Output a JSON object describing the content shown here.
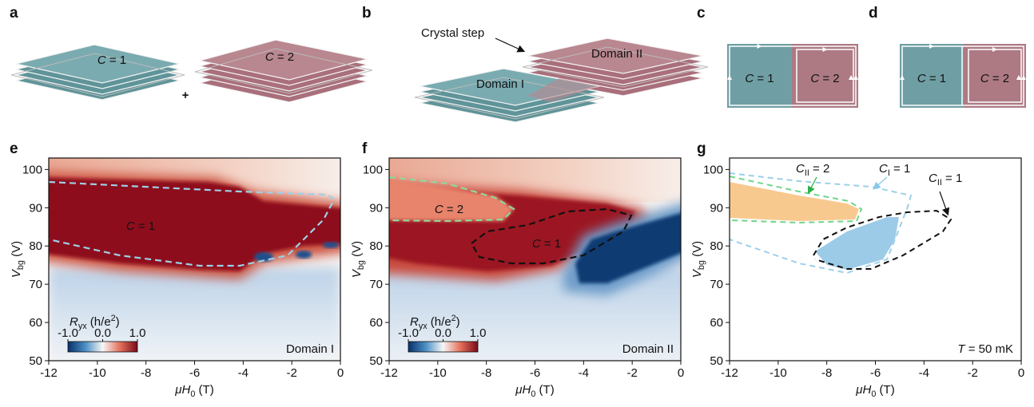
{
  "panels": {
    "a": {
      "label": "a",
      "left_text": {
        "var": "C",
        "rest": " = 1"
      },
      "plus": "+",
      "right_text": {
        "var": "C",
        "rest": " = 2"
      }
    },
    "b": {
      "label": "b",
      "step_label": "Crystal step",
      "domain1": "Domain I",
      "domain2": "Domain II"
    },
    "c": {
      "label": "c",
      "left_text": {
        "var": "C",
        "rest": " = 1"
      },
      "right_text": {
        "var": "C",
        "rest": " = 2"
      }
    },
    "d": {
      "label": "d",
      "left_text": {
        "var": "C",
        "rest": " = 1"
      },
      "right_text": {
        "var": "C",
        "rest": " = 2"
      }
    },
    "e": {
      "label": "e",
      "xlim": [
        -12,
        0
      ],
      "ylim": [
        50,
        103
      ],
      "xticks": [
        -12,
        -10,
        -8,
        -6,
        -4,
        -2,
        0
      ],
      "yticks": [
        50,
        60,
        70,
        80,
        90,
        100
      ],
      "x_label": {
        "mu": "μ",
        "sub": "0",
        "var": "H",
        "unit": " (T)"
      },
      "y_label": {
        "var": "V",
        "sub": "bg",
        "unit": " (V)"
      },
      "colorbar": {
        "label": {
          "var": "R",
          "sub": "yx",
          "unit": " (h/e",
          "sup": "2",
          "close": ")"
        },
        "clim": [
          -1,
          1
        ],
        "ticks": [
          {
            "value": -1,
            "label": "-1.0"
          },
          {
            "value": 0,
            "label": "0.0"
          },
          {
            "value": 1,
            "label": "1.0"
          }
        ]
      },
      "region_label": {
        "var": "C",
        "rest": " = 1"
      },
      "corner_label": "Domain I"
    },
    "f": {
      "label": "f",
      "xlim": [
        -12,
        0
      ],
      "ylim": [
        50,
        103
      ],
      "xticks": [
        -12,
        -10,
        -8,
        -6,
        -4,
        -2,
        0
      ],
      "yticks": [
        50,
        60,
        70,
        80,
        90,
        100
      ],
      "x_label": {
        "mu": "μ",
        "sub": "0",
        "var": "H",
        "unit": " (T)"
      },
      "y_label": {
        "var": "V",
        "sub": "bg",
        "unit": " (V)"
      },
      "colorbar": {
        "label": {
          "var": "R",
          "sub": "yx",
          "unit": " (h/e",
          "sup": "2",
          "close": ")"
        },
        "clim": [
          -1,
          1
        ],
        "ticks": [
          {
            "value": -1,
            "label": "-1.0"
          },
          {
            "value": 0,
            "label": "0.0"
          },
          {
            "value": 1,
            "label": "1.0"
          }
        ]
      },
      "region_label_1": {
        "var": "C",
        "rest": " = 2"
      },
      "region_label_2": {
        "var": "C",
        "rest": " = 1"
      },
      "corner_label": "Domain II"
    },
    "g": {
      "label": "g",
      "xlim": [
        -12,
        0
      ],
      "ylim": [
        50,
        103
      ],
      "xticks": [
        -12,
        -10,
        -8,
        -6,
        -4,
        -2,
        0
      ],
      "yticks": [
        50,
        60,
        70,
        80,
        90,
        100
      ],
      "x_label": {
        "mu": "μ",
        "sub": "0",
        "var": "H",
        "unit": " (T)"
      },
      "y_label": {
        "var": "V",
        "sub": "bg",
        "unit": " (V)"
      },
      "label_1": {
        "var": "C",
        "sub": "II",
        "rest": " = 2"
      },
      "label_2": {
        "var": "C",
        "sub": "I",
        "rest": " = 1"
      },
      "label_3": {
        "var": "C",
        "sub": "II",
        "rest": " = 1"
      },
      "temperature": {
        "var": "T",
        "rest": " = 50 mK"
      }
    }
  }
}
